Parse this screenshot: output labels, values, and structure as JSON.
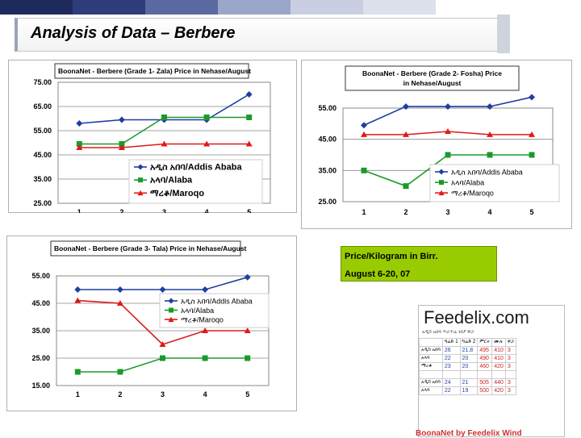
{
  "slide": {
    "title": "Analysis of Data – Berbere",
    "info_line1": "Price/Kilogram in Birr.",
    "info_line2": "August 6-20, 07",
    "brand": "Feedelix.com",
    "brand_sub": "አዲስ አበባ ጥራጥሬ ገበያ ዋጋ",
    "footer": "BoonaNet by Feedelix Wind",
    "header_colors": [
      "#1f2a5c",
      "#2f3d7a",
      "#5a6aa0",
      "#9aa6c8",
      "#c9cfe0",
      "#dde1ec",
      "#ffffff",
      "#ffffff"
    ]
  },
  "table_headers": [
    "",
    "ግሬድ 1",
    "ግሬድ 2",
    "ምርት",
    "ሙሉ",
    "ዋጋ"
  ],
  "table_rows": [
    [
      "አዲስ አበባ",
      "26",
      "21.8",
      "495",
      "410",
      "3"
    ],
    [
      "አላባ",
      "22",
      "20",
      "490",
      "410",
      "3"
    ],
    [
      "ማረቆ",
      "23",
      "20",
      "460",
      "420",
      "3"
    ],
    [
      "",
      "",
      "",
      "",
      "",
      ""
    ],
    [
      "አዲስ አበባ",
      "24",
      "21",
      "505",
      "440",
      "3"
    ],
    [
      "አላባ",
      "22",
      "19",
      "500",
      "420",
      "3"
    ]
  ],
  "chart_data": [
    {
      "type": "line",
      "title": "BoonaNet - Berbere (Grade 1- Zala) Price in Nehase/August",
      "x": [
        1,
        2,
        3,
        4,
        5
      ],
      "ylim": [
        25,
        75
      ],
      "yticks": [
        "25.00",
        "35.00",
        "45.00",
        "55.00",
        "65.00",
        "75.00"
      ],
      "series": [
        {
          "name": "አዲስ አበባ/Addis Ababa",
          "color": "#1f3fa0",
          "marker": "diamond",
          "values": [
            58,
            59.5,
            59.5,
            59.5,
            70
          ]
        },
        {
          "name": "አላባ/Alaba",
          "color": "#1a9a2a",
          "marker": "square",
          "values": [
            49.5,
            49.5,
            60.5,
            60.5,
            60.5
          ]
        },
        {
          "name": "ማረቆ/Maroqo",
          "color": "#e01818",
          "marker": "triangle",
          "values": [
            48,
            48,
            49.5,
            49.5,
            49.5
          ]
        }
      ]
    },
    {
      "type": "line",
      "title": "BoonaNet - Berbere (Grade 2- Fosha) Price in Nehase/August",
      "x": [
        1,
        2,
        3,
        4,
        5
      ],
      "ylim": [
        25,
        55
      ],
      "yticks": [
        "25.00",
        "35.00",
        "45.00",
        "55.00"
      ],
      "series": [
        {
          "name": "አዲስ አበባ/Addis Ababa",
          "color": "#1f3fa0",
          "marker": "diamond",
          "values": [
            49.5,
            55.5,
            55.5,
            55.5,
            58.5
          ]
        },
        {
          "name": "አላባ/Alaba",
          "color": "#1a9a2a",
          "marker": "square",
          "values": [
            35,
            30,
            40,
            40,
            40
          ]
        },
        {
          "name": "ማረቆ/Maroqo",
          "color": "#e01818",
          "marker": "triangle",
          "values": [
            46.5,
            46.5,
            47.5,
            46.5,
            46.5
          ]
        }
      ]
    },
    {
      "type": "line",
      "title": "BoonaNet - Berbere (Grade 3- Tala) Price in Nehase/August",
      "x": [
        1,
        2,
        3,
        4,
        5
      ],
      "ylim": [
        15,
        55
      ],
      "yticks": [
        "15.00",
        "25.00",
        "35.00",
        "45.00",
        "55.00"
      ],
      "series": [
        {
          "name": "አዲስ አበባ/Addis Ababa",
          "color": "#1f3fa0",
          "marker": "diamond",
          "values": [
            50,
            50,
            50,
            50,
            54.5
          ]
        },
        {
          "name": "አላባ/Alaba",
          "color": "#1a9a2a",
          "marker": "square",
          "values": [
            20,
            20,
            25,
            25,
            25
          ]
        },
        {
          "name": "ማረቆ/Maroqo",
          "color": "#e01818",
          "marker": "triangle",
          "values": [
            46,
            45,
            30,
            35,
            35
          ]
        }
      ]
    }
  ]
}
